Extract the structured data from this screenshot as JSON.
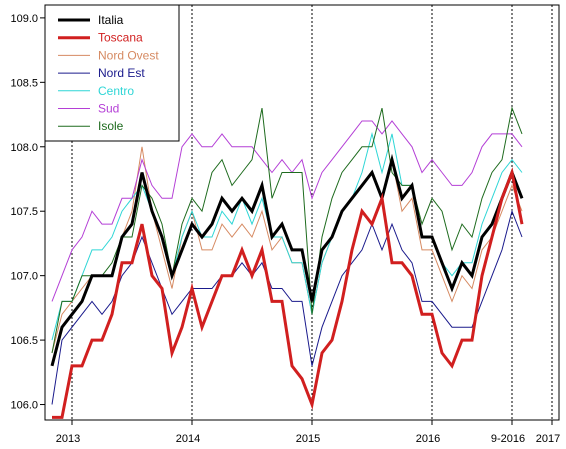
{
  "chart_data": {
    "type": "line",
    "title": "",
    "xlabel": "",
    "ylabel": "",
    "ylim": [
      105.88,
      109.1
    ],
    "yticks": [
      "106.0",
      "106.5",
      "107.0",
      "107.5",
      "108.0",
      "108.5",
      "109.0"
    ],
    "xticks": [
      "2013",
      "2014",
      "2015",
      "2016",
      "9-2016",
      "2017"
    ],
    "vlines_at_index": [
      2,
      14,
      26,
      38,
      46,
      50
    ],
    "legend_position": "top-left",
    "grid": false,
    "x_start_index": -0.5,
    "series": [
      {
        "name": "Italia",
        "color": "#000000",
        "width": 3,
        "values": [
          106.3,
          106.6,
          106.7,
          106.8,
          107.0,
          107.0,
          107.0,
          107.3,
          107.4,
          107.8,
          107.5,
          107.3,
          107.0,
          107.2,
          107.4,
          107.3,
          107.4,
          107.6,
          107.5,
          107.6,
          107.5,
          107.7,
          107.3,
          107.4,
          107.2,
          107.2,
          106.8,
          107.2,
          107.3,
          107.5,
          107.6,
          107.7,
          107.8,
          107.6,
          107.9,
          107.6,
          107.7,
          107.3,
          107.3,
          107.1,
          106.9,
          107.1,
          107.0,
          107.3,
          107.4,
          107.6,
          107.8,
          107.6
        ]
      },
      {
        "name": "Toscana",
        "color": "#d11f1f",
        "width": 3,
        "values": [
          105.9,
          105.9,
          106.3,
          106.3,
          106.5,
          106.5,
          106.7,
          107.1,
          107.1,
          107.4,
          107.0,
          106.9,
          106.4,
          106.6,
          106.9,
          106.6,
          106.8,
          107.0,
          107.0,
          107.2,
          107.0,
          107.2,
          106.8,
          106.8,
          106.3,
          106.2,
          106.0,
          106.4,
          106.5,
          106.8,
          107.2,
          107.5,
          107.4,
          107.6,
          107.1,
          107.1,
          107.0,
          106.7,
          106.7,
          106.4,
          106.3,
          106.5,
          106.5,
          107.0,
          107.3,
          107.6,
          107.8,
          107.4
        ]
      },
      {
        "name": "Nord Ovest",
        "color": "#d68a62",
        "width": 1,
        "values": [
          106.4,
          106.7,
          106.8,
          106.9,
          107.0,
          107.0,
          107.0,
          107.3,
          107.5,
          108.0,
          107.5,
          107.2,
          106.9,
          107.3,
          107.5,
          107.2,
          107.2,
          107.4,
          107.3,
          107.4,
          107.3,
          107.5,
          107.2,
          107.3,
          107.1,
          107.1,
          106.7,
          107.1,
          107.3,
          107.5,
          107.6,
          107.7,
          107.8,
          107.6,
          107.9,
          107.5,
          107.6,
          107.2,
          107.2,
          107.0,
          106.8,
          107.0,
          106.9,
          107.2,
          107.3,
          107.5,
          107.7,
          107.5
        ]
      },
      {
        "name": "Nord Est",
        "color": "#1a1a8c",
        "width": 1,
        "values": [
          106.0,
          106.5,
          106.6,
          106.7,
          106.8,
          106.7,
          106.8,
          107.0,
          107.1,
          107.3,
          107.1,
          106.9,
          106.7,
          106.8,
          106.9,
          106.9,
          106.9,
          107.0,
          107.0,
          107.1,
          107.0,
          107.1,
          106.9,
          106.9,
          106.8,
          106.8,
          106.3,
          106.6,
          106.8,
          107.0,
          107.1,
          107.2,
          107.4,
          107.2,
          107.4,
          107.2,
          107.1,
          106.8,
          106.8,
          106.7,
          106.6,
          106.6,
          106.6,
          106.8,
          107.0,
          107.2,
          107.5,
          107.3
        ]
      },
      {
        "name": "Centro",
        "color": "#2fd6d6",
        "width": 1,
        "values": [
          106.5,
          106.8,
          106.8,
          107.0,
          107.2,
          107.2,
          107.3,
          107.5,
          107.6,
          107.7,
          107.5,
          107.3,
          107.0,
          107.3,
          107.5,
          107.3,
          107.3,
          107.5,
          107.4,
          107.6,
          107.4,
          107.6,
          107.3,
          107.3,
          107.1,
          107.1,
          106.7,
          107.1,
          107.3,
          107.5,
          107.6,
          107.8,
          108.1,
          107.8,
          108.1,
          107.7,
          107.7,
          107.3,
          107.3,
          107.1,
          107.0,
          107.1,
          107.1,
          107.4,
          107.6,
          107.8,
          107.9,
          107.8
        ]
      },
      {
        "name": "Sud",
        "color": "#b43fd6",
        "width": 1,
        "values": [
          106.8,
          107.0,
          107.2,
          107.3,
          107.5,
          107.4,
          107.4,
          107.6,
          107.6,
          107.9,
          107.7,
          107.6,
          107.6,
          108.0,
          108.1,
          108.0,
          108.0,
          108.1,
          108.0,
          108.0,
          108.0,
          107.9,
          107.8,
          107.9,
          107.8,
          107.9,
          107.6,
          107.8,
          107.9,
          108.0,
          108.1,
          108.2,
          108.2,
          108.1,
          108.2,
          108.1,
          108.0,
          107.8,
          107.9,
          107.8,
          107.7,
          107.7,
          107.8,
          108.0,
          108.1,
          108.1,
          108.1,
          108.0
        ]
      },
      {
        "name": "Isole",
        "color": "#1e6b1e",
        "width": 1,
        "values": [
          106.4,
          106.8,
          106.8,
          107.0,
          107.0,
          107.0,
          107.1,
          107.3,
          107.3,
          107.7,
          107.6,
          107.4,
          107.0,
          107.4,
          107.6,
          107.5,
          107.8,
          107.9,
          107.7,
          107.8,
          107.9,
          108.3,
          107.6,
          107.8,
          107.8,
          107.8,
          106.7,
          107.3,
          107.6,
          107.8,
          107.9,
          108.0,
          108.0,
          108.3,
          107.8,
          107.7,
          107.7,
          107.4,
          107.6,
          107.5,
          107.2,
          107.4,
          107.3,
          107.6,
          107.8,
          107.9,
          108.3,
          108.1
        ]
      }
    ]
  }
}
